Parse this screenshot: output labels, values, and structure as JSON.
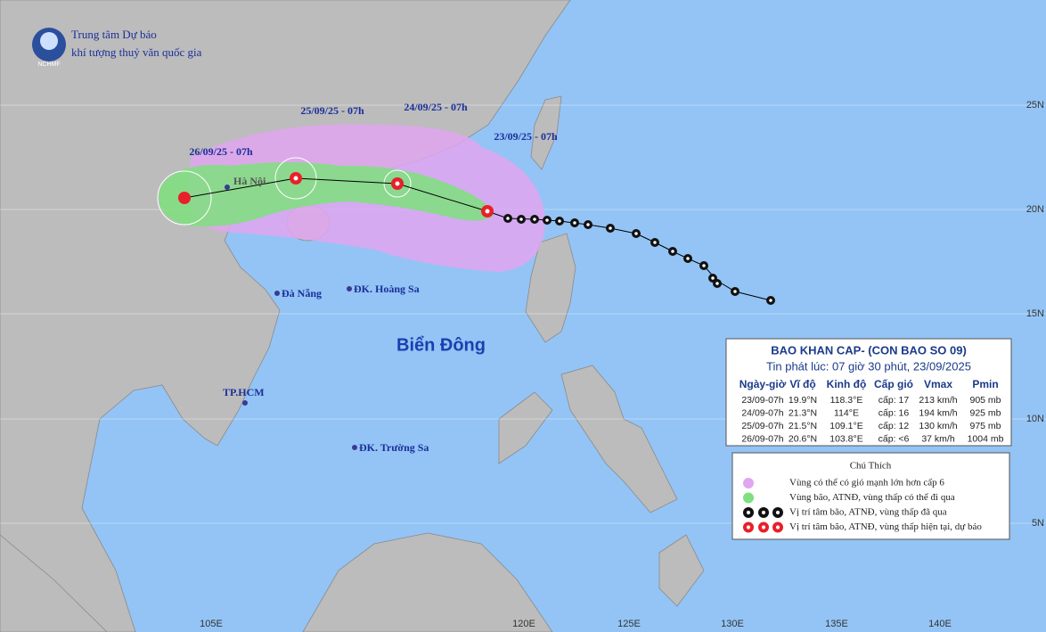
{
  "header": {
    "org_line1": "Trung tâm Dự báo",
    "org_line2": "khí tượng thuỷ văn quốc gia",
    "logo": "NCHMF"
  },
  "forecast_times": [
    "26/09/25 - 07h",
    "25/09/25 - 07h",
    "24/09/25 - 07h",
    "23/09/25 - 07h"
  ],
  "places": [
    "Hà Nội",
    "Đà Nẵng",
    "ĐK. Hoàng Sa",
    "TP.HCM",
    "ĐK. Trường Sa"
  ],
  "sea_name": "Biển Đông",
  "lat_labels": [
    "25N",
    "20N",
    "15N",
    "10N",
    "5N"
  ],
  "lon_labels": [
    "105E",
    "120E",
    "125E",
    "130E",
    "135E",
    "140E"
  ],
  "bulletin": {
    "title": "BAO KHAN CAP- (CON BAO SO 09)",
    "issued": "Tin phát lúc: 07 giờ 30 phút, 23/09/2025",
    "columns": [
      "Ngày-giờ",
      "Vĩ độ",
      "Kinh độ",
      "Cấp gió",
      "Vmax",
      "Pmin"
    ],
    "rows": [
      [
        "23/09-07h",
        "19.9°N",
        "118.3°E",
        "cấp: 17",
        "213 km/h",
        "905 mb"
      ],
      [
        "24/09-07h",
        "21.3°N",
        "114°E",
        "cấp: 16",
        "194 km/h",
        "925 mb"
      ],
      [
        "25/09-07h",
        "21.5°N",
        "109.1°E",
        "cấp: 12",
        "130 km/h",
        "975 mb"
      ],
      [
        "26/09-07h",
        "20.6°N",
        "103.8°E",
        "cấp: <6",
        "37 km/h",
        "1004 mb"
      ]
    ]
  },
  "legend": {
    "title": "Chú Thích",
    "items": [
      "Vùng có thể có gió mạnh lớn hơn cấp 6",
      "Vùng bão, ATNĐ, vùng thấp có thể đi qua",
      "Vị trí tâm bão, ATNĐ, vùng thấp đã qua",
      "Vị trí tâm bão, ATNĐ, vùng thấp hiện tại, dự báo"
    ]
  }
}
